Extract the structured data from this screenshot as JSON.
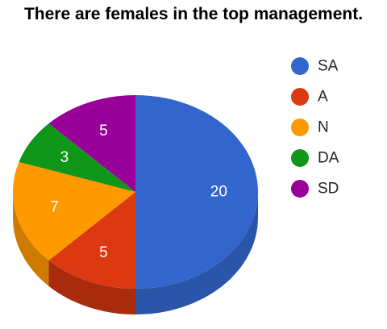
{
  "chart_data": {
    "type": "pie",
    "title": "There are females in the top management.",
    "slices": [
      {
        "label": "SA",
        "value": 20,
        "color": "#3366cc",
        "side": "#2a55a8"
      },
      {
        "label": "A",
        "value": 5,
        "color": "#dc3912",
        "side": "#a82b0d"
      },
      {
        "label": "N",
        "value": 7,
        "color": "#ff9900",
        "side": "#cc7a00"
      },
      {
        "label": "DA",
        "value": 3,
        "color": "#109618",
        "side": "#0c7212"
      },
      {
        "label": "SD",
        "value": 5,
        "color": "#990099",
        "side": "#730073"
      }
    ],
    "legend_position": "right",
    "style": "3d"
  }
}
